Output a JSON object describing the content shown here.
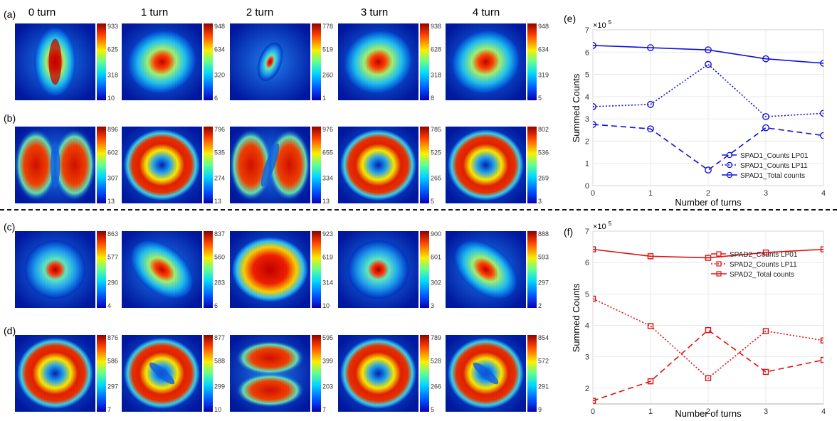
{
  "header": {
    "columns": [
      "0 turn",
      "1 turn",
      "2 turn",
      "3 turn",
      "4 turn"
    ],
    "rows": [
      "(a)",
      "(b)",
      "(c)",
      "(d)"
    ]
  },
  "heatmap_colors": {
    "low": "#1030c0",
    "mid": "#30c8e8",
    "high": "#d01010"
  },
  "heatmaps": [
    {
      "row": "(a)",
      "panels": [
        {
          "ticks": [
            "933",
            "625",
            "318",
            "10"
          ],
          "pattern": "vertical-blob"
        },
        {
          "ticks": [
            "948",
            "634",
            "320",
            "6"
          ],
          "pattern": "ellipse"
        },
        {
          "ticks": [
            "778",
            "519",
            "260",
            "1"
          ],
          "pattern": "small-spot"
        },
        {
          "ticks": [
            "938",
            "628",
            "318",
            "8"
          ],
          "pattern": "ellipse"
        },
        {
          "ticks": [
            "948",
            "634",
            "319",
            "5"
          ],
          "pattern": "ellipse"
        }
      ]
    },
    {
      "row": "(b)",
      "panels": [
        {
          "ticks": [
            "896",
            "602",
            "307",
            "13"
          ],
          "pattern": "two-lobes"
        },
        {
          "ticks": [
            "796",
            "535",
            "274",
            "13"
          ],
          "pattern": "ring"
        },
        {
          "ticks": [
            "976",
            "655",
            "334",
            "13"
          ],
          "pattern": "two-lobes-filled"
        },
        {
          "ticks": [
            "785",
            "525",
            "265",
            "5"
          ],
          "pattern": "ring"
        },
        {
          "ticks": [
            "802",
            "536",
            "269",
            "3"
          ],
          "pattern": "ring"
        }
      ]
    },
    {
      "row": "(c)",
      "panels": [
        {
          "ticks": [
            "863",
            "577",
            "290",
            "4"
          ],
          "pattern": "spot"
        },
        {
          "ticks": [
            "837",
            "560",
            "283",
            "6"
          ],
          "pattern": "tilted-ellipse"
        },
        {
          "ticks": [
            "923",
            "619",
            "314",
            "10"
          ],
          "pattern": "wide-ellipse"
        },
        {
          "ticks": [
            "900",
            "601",
            "302",
            "3"
          ],
          "pattern": "spot"
        },
        {
          "ticks": [
            "888",
            "593",
            "297",
            "2"
          ],
          "pattern": "tilted-ellipse"
        }
      ]
    },
    {
      "row": "(d)",
      "panels": [
        {
          "ticks": [
            "876",
            "586",
            "297",
            "7"
          ],
          "pattern": "ring"
        },
        {
          "ticks": [
            "877",
            "588",
            "299",
            "10"
          ],
          "pattern": "tilted-lobes"
        },
        {
          "ticks": [
            "595",
            "399",
            "203",
            "7"
          ],
          "pattern": "horizontal-lobes"
        },
        {
          "ticks": [
            "789",
            "528",
            "266",
            "5"
          ],
          "pattern": "ring"
        },
        {
          "ticks": [
            "854",
            "572",
            "291",
            "9"
          ],
          "pattern": "tilted-lobes"
        }
      ]
    }
  ],
  "chart_data": [
    {
      "type": "line",
      "panel_label": "(e)",
      "x": [
        0,
        1,
        2,
        3,
        4
      ],
      "xlabel": "Number of turns",
      "ylabel": "Summed Counts",
      "ylim": [
        0,
        7
      ],
      "yticks": [
        "0",
        "1",
        "2",
        "3",
        "4",
        "5",
        "6",
        "7"
      ],
      "xticks": [
        "0",
        "1",
        "2",
        "3",
        "4"
      ],
      "y_multiplier_base": "×10",
      "y_multiplier_exp": "5",
      "grid": true,
      "legend_position": "bottom-right",
      "color": "#1010e0",
      "series": [
        {
          "name": "SPAD1_Counts LP01",
          "style": "dashed",
          "marker": "circle",
          "values": [
            2.75,
            2.55,
            0.7,
            2.6,
            2.25
          ]
        },
        {
          "name": "SPAD1_Counts LP11",
          "style": "dotted",
          "marker": "circle",
          "values": [
            3.55,
            3.65,
            5.45,
            3.1,
            3.25
          ]
        },
        {
          "name": "SPAD1_Total counts",
          "style": "solid",
          "marker": "circle",
          "values": [
            6.3,
            6.2,
            6.1,
            5.7,
            5.5
          ]
        }
      ]
    },
    {
      "type": "line",
      "panel_label": "(f)",
      "x": [
        0,
        1,
        2,
        3,
        4
      ],
      "xlabel": "Number of turns",
      "ylabel": "Summed Counts",
      "ylim": [
        1.5,
        7
      ],
      "yticks": [
        "2",
        "3",
        "4",
        "5",
        "6",
        "7"
      ],
      "ytick_values": [
        2,
        3,
        4,
        5,
        6,
        7
      ],
      "xticks": [
        "0",
        "1",
        "2",
        "3",
        "4"
      ],
      "y_multiplier_base": "×10",
      "y_multiplier_exp": "5",
      "grid": true,
      "legend_position": "top-right",
      "color": "#e01010",
      "series": [
        {
          "name": "SPAD2_Counts LP01",
          "style": "dashed",
          "marker": "square",
          "values": [
            1.6,
            2.22,
            3.85,
            2.52,
            2.9
          ]
        },
        {
          "name": "SPAD2_Counts LP11",
          "style": "dotted",
          "marker": "square",
          "values": [
            4.85,
            3.98,
            2.32,
            3.82,
            3.52
          ]
        },
        {
          "name": "SPAD2_Total counts",
          "style": "solid",
          "marker": "square",
          "values": [
            6.42,
            6.2,
            6.15,
            6.32,
            6.42
          ]
        }
      ]
    }
  ]
}
